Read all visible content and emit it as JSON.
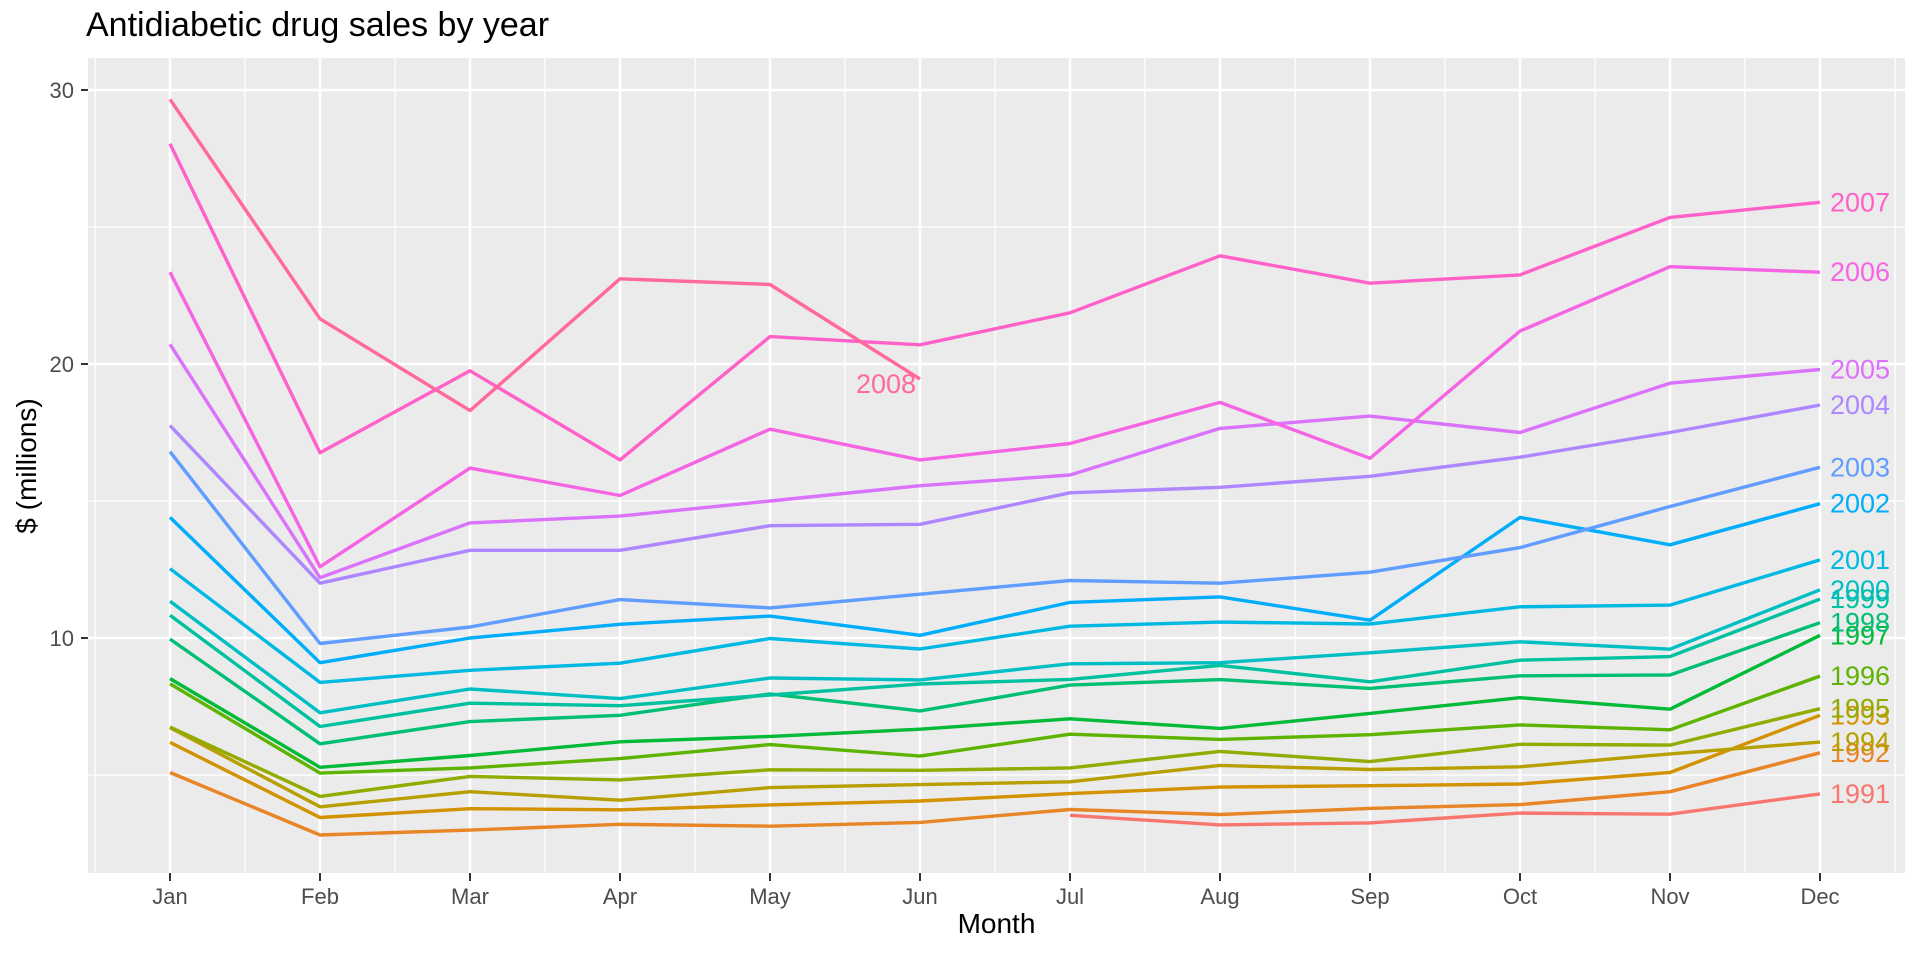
{
  "title": "Antidiabetic drug sales by year",
  "axes": {
    "x_label": "Month",
    "y_label": "$ (millions)"
  },
  "chart_data": {
    "type": "line",
    "title": "Antidiabetic drug sales by year",
    "xlabel": "Month",
    "ylabel": "$ (millions)",
    "categories": [
      "Jan",
      "Feb",
      "Mar",
      "Apr",
      "May",
      "Jun",
      "Jul",
      "Aug",
      "Sep",
      "Oct",
      "Nov",
      "Dec"
    ],
    "y_ticks": [
      10,
      20,
      30
    ],
    "y_minor_gridlines": [
      5,
      15,
      25
    ],
    "ylim": [
      1.4,
      31.2
    ],
    "grid": true,
    "legend_position": "none (lines labeled with year text at line ends)",
    "panel_background": "#EBEBEB",
    "gridline_color": "#FFFFFF",
    "axis_text_color": "#4D4D4D",
    "tick_mark_color": "#333333",
    "series": [
      {
        "name": "1991",
        "color": "#F8766D",
        "values": [
          null,
          null,
          null,
          null,
          null,
          null,
          3.53,
          3.18,
          3.25,
          3.61,
          3.57,
          4.31
        ]
      },
      {
        "name": "1992",
        "color": "#E88526",
        "values": [
          5.09,
          2.81,
          2.99,
          3.2,
          3.13,
          3.27,
          3.74,
          3.56,
          3.78,
          3.92,
          4.39,
          5.81
        ]
      },
      {
        "name": "1993",
        "color": "#D39200",
        "values": [
          6.19,
          3.45,
          3.77,
          3.73,
          3.91,
          4.05,
          4.32,
          4.56,
          4.61,
          4.67,
          5.09,
          7.18
        ]
      },
      {
        "name": "1994",
        "color": "#B79F00",
        "values": [
          6.73,
          3.84,
          4.39,
          4.08,
          4.54,
          4.65,
          4.75,
          5.35,
          5.2,
          5.3,
          5.77,
          6.2
        ]
      },
      {
        "name": "1995",
        "color": "#93AA00",
        "values": [
          6.75,
          4.22,
          4.95,
          4.82,
          5.19,
          5.17,
          5.26,
          5.86,
          5.49,
          6.12,
          6.09,
          7.42
        ]
      },
      {
        "name": "1996",
        "color": "#5EB300",
        "values": [
          8.33,
          5.07,
          5.26,
          5.6,
          6.11,
          5.69,
          6.49,
          6.3,
          6.47,
          6.83,
          6.65,
          8.61
        ]
      },
      {
        "name": "1997",
        "color": "#00BA38",
        "values": [
          8.52,
          5.28,
          5.71,
          6.21,
          6.41,
          6.67,
          7.05,
          6.7,
          7.25,
          7.82,
          7.4,
          10.1
        ]
      },
      {
        "name": "1998",
        "color": "#00BF74",
        "values": [
          9.96,
          6.14,
          6.95,
          7.18,
          7.96,
          7.34,
          8.28,
          8.48,
          8.16,
          8.62,
          8.65,
          10.56
        ]
      },
      {
        "name": "1999",
        "color": "#00C19F",
        "values": [
          10.83,
          6.77,
          7.62,
          7.53,
          7.92,
          8.32,
          8.49,
          9.0,
          8.4,
          9.19,
          9.32,
          11.42
        ]
      },
      {
        "name": "2000",
        "color": "#00BFC4",
        "values": [
          11.34,
          7.27,
          8.14,
          7.79,
          8.54,
          8.47,
          9.06,
          9.1,
          9.46,
          9.86,
          9.59,
          11.76
        ]
      },
      {
        "name": "2001",
        "color": "#00B9E3",
        "values": [
          12.53,
          8.38,
          8.82,
          9.08,
          9.98,
          9.6,
          10.43,
          10.58,
          10.51,
          11.14,
          11.2,
          12.85
        ]
      },
      {
        "name": "2002",
        "color": "#00ADFA",
        "values": [
          14.4,
          9.1,
          10.0,
          10.5,
          10.8,
          10.1,
          11.3,
          11.5,
          10.65,
          14.4,
          13.4,
          14.9
        ]
      },
      {
        "name": "2003",
        "color": "#619CFF",
        "values": [
          16.8,
          9.8,
          10.4,
          11.4,
          11.1,
          11.6,
          12.1,
          12.0,
          12.4,
          13.3,
          14.8,
          16.23
        ]
      },
      {
        "name": "2004",
        "color": "#AE87FF",
        "values": [
          17.75,
          12.0,
          13.2,
          13.2,
          14.1,
          14.15,
          15.3,
          15.5,
          15.9,
          16.6,
          17.5,
          18.5
        ]
      },
      {
        "name": "2005",
        "color": "#DB72FB",
        "values": [
          20.72,
          12.2,
          14.2,
          14.45,
          15.0,
          15.56,
          15.95,
          17.65,
          18.1,
          17.5,
          19.3,
          19.8
        ]
      },
      {
        "name": "2006",
        "color": "#F564E3",
        "values": [
          23.35,
          12.6,
          16.2,
          15.2,
          17.62,
          16.5,
          17.1,
          18.6,
          16.56,
          21.2,
          23.55,
          23.35
        ]
      },
      {
        "name": "2007",
        "color": "#FF61C9",
        "values": [
          28.04,
          16.76,
          19.75,
          16.5,
          21.0,
          20.7,
          21.87,
          23.95,
          22.95,
          23.25,
          25.35,
          25.9
        ]
      },
      {
        "name": "2008",
        "color": "#FF699C",
        "values": [
          29.66,
          21.65,
          18.3,
          23.11,
          22.9,
          19.45,
          null,
          null,
          null,
          null,
          null,
          null
        ]
      }
    ]
  }
}
